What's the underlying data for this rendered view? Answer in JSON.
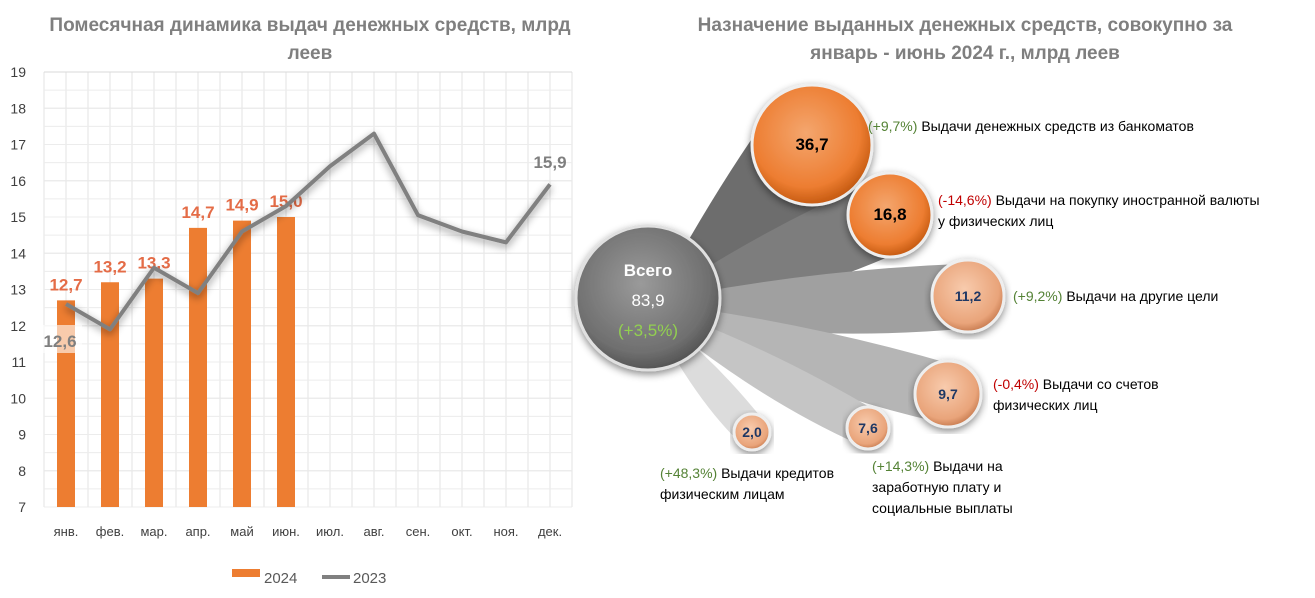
{
  "chart_data": [
    {
      "type": "bar+line",
      "title": "Помесячная динамика выдач денежных средств, млрд леев",
      "categories": [
        "янв.",
        "фев.",
        "мар.",
        "апр.",
        "май",
        "июн.",
        "июл.",
        "авг.",
        "сен.",
        "окт.",
        "ноя.",
        "дек."
      ],
      "ylim": [
        7,
        19
      ],
      "yticks": [
        7,
        8,
        9,
        10,
        11,
        12,
        13,
        14,
        15,
        16,
        17,
        18,
        19
      ],
      "grid": true,
      "legend": "bottom",
      "series": [
        {
          "name": "2024",
          "type": "bar",
          "color": "#ed7d31",
          "values": [
            12.7,
            13.2,
            13.3,
            14.7,
            14.9,
            15.0,
            null,
            null,
            null,
            null,
            null,
            null
          ],
          "labels": [
            "12,7",
            "13,2",
            "13,3",
            "14,7",
            "14,9",
            "15,0"
          ]
        },
        {
          "name": "2023",
          "type": "line",
          "color": "#808080",
          "values": [
            12.6,
            11.9,
            13.6,
            12.9,
            14.6,
            15.3,
            16.4,
            17.3,
            15.05,
            14.6,
            14.3,
            15.9
          ],
          "labels": {
            "0": "12,6",
            "11": "15,9"
          }
        }
      ]
    },
    {
      "type": "bubble",
      "title": "Назначение выданных денежных средств, совокупно за январь - июнь 2024 г., млрд леев",
      "total": {
        "label": "Всего",
        "value": "83,9",
        "change": "(+3,5%)"
      },
      "items": [
        {
          "value": "36,7",
          "change": "(+9,7%)",
          "sign": "pos",
          "label": "Выдачи денежных средств из банкоматов"
        },
        {
          "value": "16,8",
          "change": "(-14,6%)",
          "sign": "neg",
          "label": "Выдачи на покупку иностранной валюты у физических лиц"
        },
        {
          "value": "11,2",
          "change": "(+9,2%)",
          "sign": "pos",
          "label": "Выдачи на другие цели"
        },
        {
          "value": "9,7",
          "change": "(-0,4%)",
          "sign": "neg",
          "label": "Выдачи со счетов физических лиц"
        },
        {
          "value": "7,6",
          "change": "(+14,3%)",
          "sign": "pos",
          "label": "Выдачи на заработную плату и социальные выплаты"
        },
        {
          "value": "2,0",
          "change": "(+48,3%)",
          "sign": "pos",
          "label": "Выдачи кредитов физическим лицам"
        }
      ]
    }
  ]
}
